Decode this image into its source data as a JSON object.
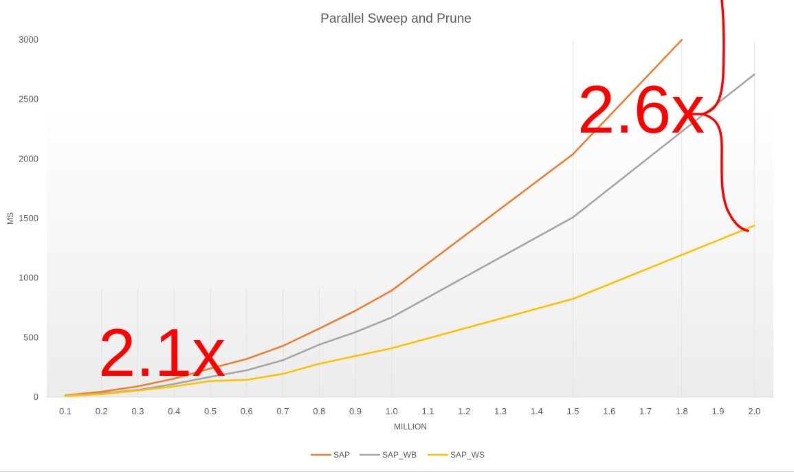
{
  "chart_data": {
    "type": "line",
    "title": "Parallel Sweep and Prune",
    "xlabel": "MILLION",
    "ylabel": "MS",
    "categories": [
      "0.1",
      "0.2",
      "0.3",
      "0.4",
      "0.5",
      "0.6",
      "0.7",
      "0.8",
      "0.9",
      "1.0",
      "1.1",
      "1.2",
      "1.3",
      "1.4",
      "1.5",
      "1.6",
      "1.7",
      "1.8",
      "1.9",
      "2.0"
    ],
    "y_ticks": [
      "0",
      "500",
      "1000",
      "1500",
      "2000",
      "2500",
      "3000"
    ],
    "ylim": [
      0,
      3000
    ],
    "grid": "vertical",
    "legend_position": "bottom",
    "series": [
      {
        "name": "SAP",
        "color": "#ed7d31",
        "points": [
          [
            0.1,
            15
          ],
          [
            0.2,
            45
          ],
          [
            0.3,
            90
          ],
          [
            0.4,
            155
          ],
          [
            0.5,
            240
          ],
          [
            0.6,
            320
          ],
          [
            0.7,
            430
          ],
          [
            0.8,
            575
          ],
          [
            0.9,
            725
          ],
          [
            1.0,
            895
          ],
          [
            1.5,
            2040
          ],
          [
            1.8,
            3000
          ]
        ]
      },
      {
        "name": "SAP_WB",
        "color": "#a5a5a5",
        "points": [
          [
            0.1,
            12
          ],
          [
            0.2,
            30
          ],
          [
            0.3,
            60
          ],
          [
            0.4,
            110
          ],
          [
            0.5,
            170
          ],
          [
            0.6,
            225
          ],
          [
            0.7,
            310
          ],
          [
            0.8,
            440
          ],
          [
            0.9,
            545
          ],
          [
            1.0,
            670
          ],
          [
            1.5,
            1510
          ],
          [
            2.0,
            2710
          ]
        ]
      },
      {
        "name": "SAP_WS",
        "color": "#ffc000",
        "points": [
          [
            0.1,
            10
          ],
          [
            0.2,
            25
          ],
          [
            0.3,
            55
          ],
          [
            0.4,
            90
          ],
          [
            0.5,
            135
          ],
          [
            0.6,
            145
          ],
          [
            0.7,
            195
          ],
          [
            0.8,
            280
          ],
          [
            0.9,
            345
          ],
          [
            1.0,
            410
          ],
          [
            1.5,
            825
          ],
          [
            2.0,
            1440
          ]
        ]
      }
    ],
    "annotations": [
      {
        "text": "2.1x",
        "color": "#ff0000"
      },
      {
        "text": "2.6x",
        "color": "#ff0000"
      }
    ]
  }
}
